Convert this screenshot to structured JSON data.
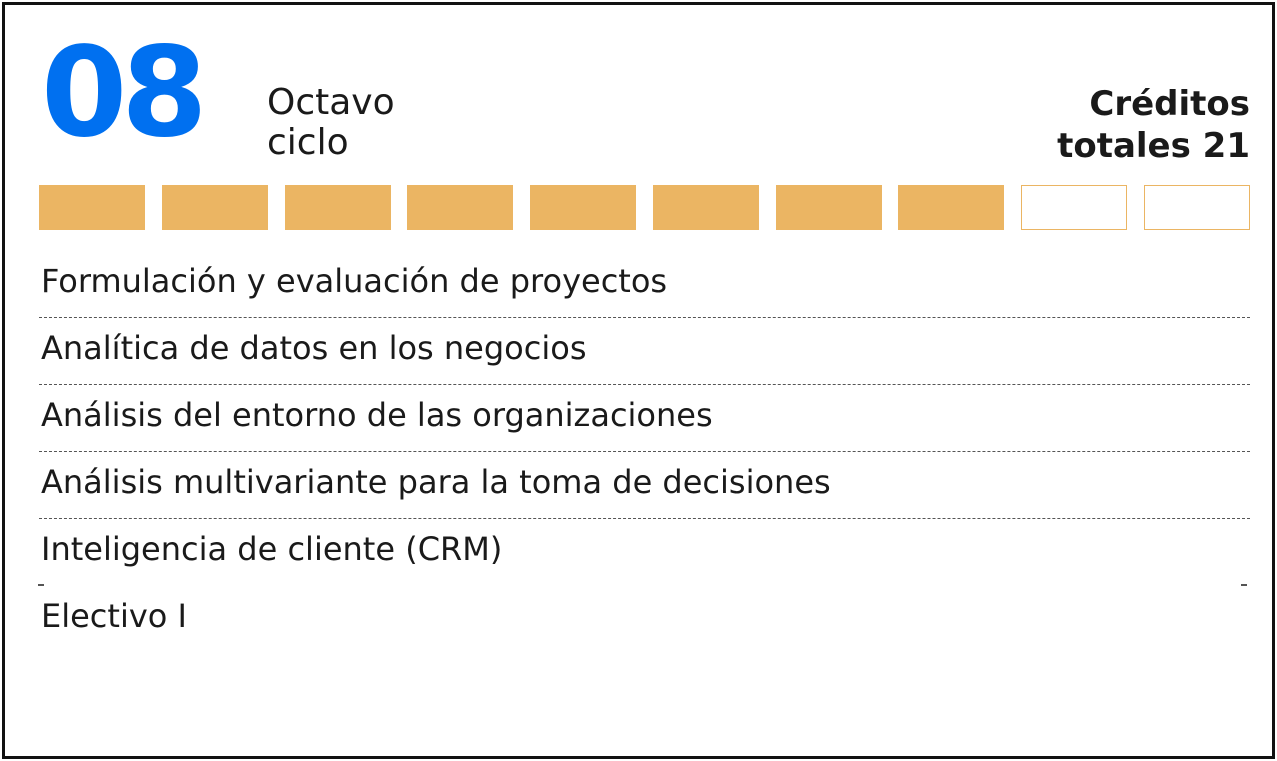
{
  "cycle": {
    "number": "08",
    "name_line1": "Octavo",
    "name_line2": "ciclo"
  },
  "credits": {
    "line1": "Créditos",
    "line2": "totales 21"
  },
  "progress": {
    "filled": 8,
    "total": 10,
    "fill_color": "#ebb563",
    "accent_color": "#0070f0"
  },
  "courses": [
    "Formulación y evaluación de proyectos",
    "Analítica de datos en los negocios",
    "Análisis del entorno de las organizaciones",
    "Análisis multivariante para la toma de decisiones",
    "Inteligencia de cliente (CRM)",
    "Electivo I"
  ]
}
